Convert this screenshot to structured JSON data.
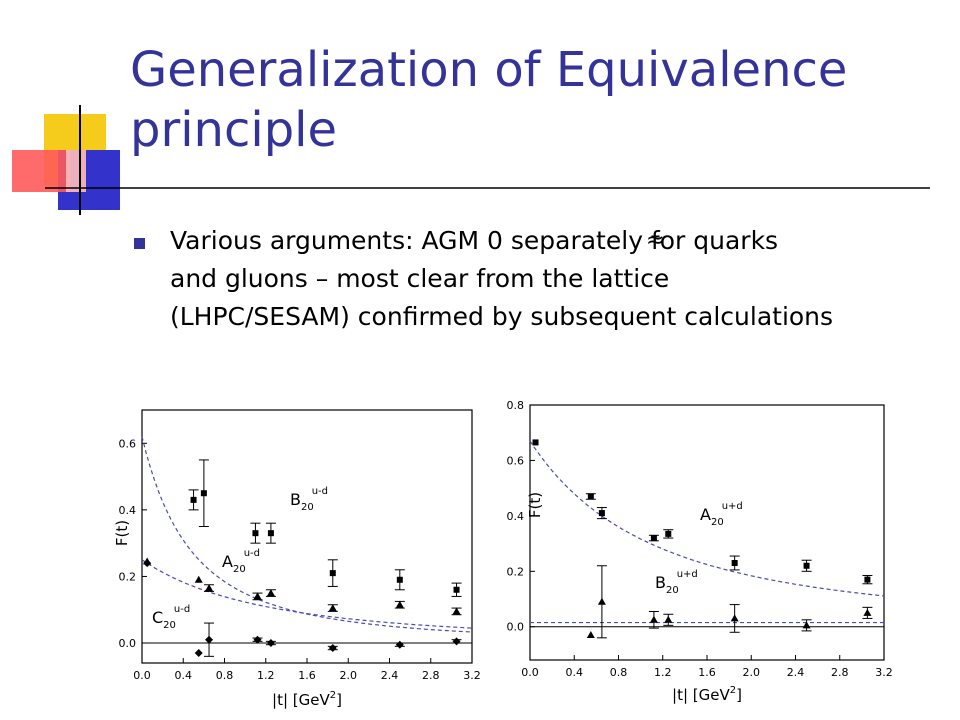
{
  "slide": {
    "title_line1": "Generalization of Equivalence",
    "title_line2": "principle",
    "bullet_line1": "Various arguments: AGM    0 separately for quarks",
    "bullet_line2": "and gluons – most clear from the lattice",
    "bullet_line3": "(LHPC/SESAM) confirmed by subsequent calculations",
    "approx_symbol": "≈",
    "accent_color": "#333399"
  },
  "chart_data": [
    {
      "type": "scatter",
      "ylabel": "F(t)",
      "xlabel": "|t| [GeV",
      "xlabel_sup": "2",
      "xlabel_end": "]",
      "xlim": [
        0,
        3.2
      ],
      "ylim": [
        -0.06,
        0.7
      ],
      "xticks": [
        "0.0",
        "0.4",
        "0.8",
        "1.2",
        "1.6",
        "2.0",
        "2.4",
        "2.8",
        "3.2"
      ],
      "yticks": [
        "0.0",
        "0.2",
        "0.4",
        "0.6"
      ],
      "series": [
        {
          "name": "B20 u-d",
          "label_main": "B",
          "label_sub": "20",
          "label_sup": "u-d",
          "marker": "square",
          "points": [
            {
              "x": 0.5,
              "y": 0.43,
              "err": 0.03
            },
            {
              "x": 0.6,
              "y": 0.45,
              "err": 0.1
            },
            {
              "x": 1.1,
              "y": 0.33,
              "err": 0.03
            },
            {
              "x": 1.25,
              "y": 0.33,
              "err": 0.03
            },
            {
              "x": 1.85,
              "y": 0.21,
              "err": 0.04
            },
            {
              "x": 2.5,
              "y": 0.19,
              "err": 0.03
            },
            {
              "x": 3.05,
              "y": 0.16,
              "err": 0.02
            }
          ],
          "fit": {
            "a": 0.62,
            "m2": 0.96
          }
        },
        {
          "name": "A20 u-d",
          "label_main": "A",
          "label_sub": "20",
          "label_sup": "u-d",
          "marker": "triangle",
          "points": [
            {
              "x": 0.05,
              "y": 0.245,
              "err": 0.0
            },
            {
              "x": 0.55,
              "y": 0.19,
              "err": 0.0
            },
            {
              "x": 0.65,
              "y": 0.165,
              "err": 0.01
            },
            {
              "x": 1.12,
              "y": 0.14,
              "err": 0.01
            },
            {
              "x": 1.25,
              "y": 0.15,
              "err": 0.01
            },
            {
              "x": 1.85,
              "y": 0.105,
              "err": 0.01
            },
            {
              "x": 2.5,
              "y": 0.115,
              "err": 0.01
            },
            {
              "x": 3.05,
              "y": 0.095,
              "err": 0.01
            }
          ],
          "fit": {
            "a": 0.25,
            "m2": 2.35
          }
        },
        {
          "name": "C20 u-d",
          "label_main": "C",
          "label_sub": "20",
          "label_sup": "u-d",
          "marker": "diamond",
          "points": [
            {
              "x": 0.05,
              "y": 0.24,
              "err": 0.0
            },
            {
              "x": 0.55,
              "y": -0.03,
              "err": 0.0
            },
            {
              "x": 0.65,
              "y": 0.01,
              "err": 0.05
            },
            {
              "x": 1.12,
              "y": 0.01,
              "err": 0.005
            },
            {
              "x": 1.25,
              "y": 0.0,
              "err": 0.005
            },
            {
              "x": 1.85,
              "y": -0.015,
              "err": 0.005
            },
            {
              "x": 2.5,
              "y": -0.005,
              "err": 0.005
            },
            {
              "x": 3.05,
              "y": 0.005,
              "err": 0.005
            }
          ]
        }
      ]
    },
    {
      "type": "scatter",
      "ylabel": "F(t)",
      "xlabel": "|t| [GeV",
      "xlabel_sup": "2",
      "xlabel_end": "]",
      "xlim": [
        0,
        3.2
      ],
      "ylim": [
        -0.12,
        0.8
      ],
      "xticks": [
        "0.0",
        "0.4",
        "0.8",
        "1.2",
        "1.6",
        "2.0",
        "2.4",
        "2.8",
        "3.2"
      ],
      "yticks": [
        "0.0",
        "0.2",
        "0.4",
        "0.6",
        "0.8"
      ],
      "series": [
        {
          "name": "A20 u+d",
          "label_main": "A",
          "label_sub": "20",
          "label_sup": "u+d",
          "marker": "square",
          "points": [
            {
              "x": 0.05,
              "y": 0.665,
              "err": 0.0
            },
            {
              "x": 0.55,
              "y": 0.47,
              "err": 0.01
            },
            {
              "x": 0.65,
              "y": 0.41,
              "err": 0.02
            },
            {
              "x": 1.12,
              "y": 0.32,
              "err": 0.01
            },
            {
              "x": 1.25,
              "y": 0.335,
              "err": 0.015
            },
            {
              "x": 1.85,
              "y": 0.23,
              "err": 0.025
            },
            {
              "x": 2.5,
              "y": 0.22,
              "err": 0.02
            },
            {
              "x": 3.05,
              "y": 0.17,
              "err": 0.015
            }
          ],
          "fit": {
            "a": 0.67,
            "m2": 2.2
          }
        },
        {
          "name": "B20 u+d",
          "label_main": "B",
          "label_sub": "20",
          "label_sup": "u+d",
          "marker": "triangle",
          "points": [
            {
              "x": 0.55,
              "y": -0.03,
              "err": 0.0
            },
            {
              "x": 0.65,
              "y": 0.09,
              "err": 0.13
            },
            {
              "x": 1.12,
              "y": 0.025,
              "err": 0.03
            },
            {
              "x": 1.25,
              "y": 0.025,
              "err": 0.02
            },
            {
              "x": 1.85,
              "y": 0.03,
              "err": 0.05
            },
            {
              "x": 2.5,
              "y": 0.005,
              "err": 0.02
            },
            {
              "x": 3.05,
              "y": 0.05,
              "err": 0.02
            }
          ],
          "fit_constant": 0.015
        }
      ]
    }
  ]
}
